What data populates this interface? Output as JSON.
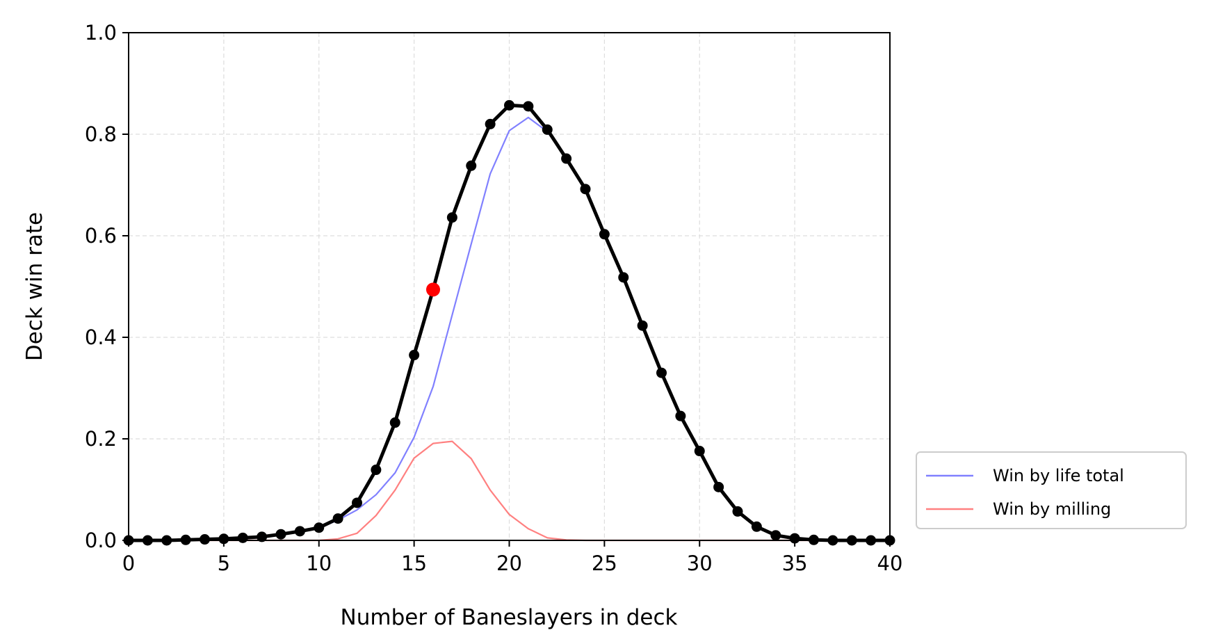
{
  "chart_data": {
    "type": "line",
    "title": "",
    "xlabel": "Number of Baneslayers in deck",
    "ylabel": "Deck win rate",
    "xlim": [
      0,
      40
    ],
    "ylim": [
      0,
      1
    ],
    "xticks": [
      0,
      5,
      10,
      15,
      20,
      25,
      30,
      35,
      40
    ],
    "xtick_labels": [
      "0",
      "5",
      "10",
      "15",
      "20",
      "25",
      "30",
      "35",
      "40"
    ],
    "yticks": [
      0,
      0.2,
      0.4,
      0.6,
      0.8,
      1.0
    ],
    "ytick_labels": [
      "0.0",
      "0.2",
      "0.4",
      "0.6",
      "0.8",
      "1.0"
    ],
    "grid": true,
    "legend_position": "outside-lower-right",
    "x": [
      0,
      1,
      2,
      3,
      4,
      5,
      6,
      7,
      8,
      9,
      10,
      11,
      12,
      13,
      14,
      15,
      16,
      17,
      18,
      19,
      20,
      21,
      22,
      23,
      24,
      25,
      26,
      27,
      28,
      29,
      30,
      31,
      32,
      33,
      34,
      35,
      36,
      37,
      38,
      39,
      40
    ],
    "series": [
      {
        "name": "",
        "role": "total",
        "color": "#000000",
        "markers": true,
        "values": [
          0.0,
          0.0,
          0.0,
          0.001,
          0.002,
          0.003,
          0.005,
          0.007,
          0.012,
          0.018,
          0.025,
          0.043,
          0.074,
          0.139,
          0.232,
          0.365,
          0.494,
          0.636,
          0.738,
          0.82,
          0.857,
          0.855,
          0.809,
          0.752,
          0.692,
          0.603,
          0.518,
          0.423,
          0.33,
          0.245,
          0.176,
          0.105,
          0.057,
          0.027,
          0.01,
          0.004,
          0.001,
          0.0,
          0.0,
          0.0,
          0.0
        ]
      },
      {
        "name": "Win by life total",
        "role": "life",
        "color": "#8080ff",
        "markers": false,
        "values": [
          0.0,
          0.0,
          0.0,
          0.001,
          0.002,
          0.003,
          0.005,
          0.007,
          0.011,
          0.018,
          0.024,
          0.04,
          0.06,
          0.09,
          0.133,
          0.203,
          0.303,
          0.444,
          0.584,
          0.722,
          0.807,
          0.833,
          0.805,
          0.752,
          0.692,
          0.603,
          0.518,
          0.423,
          0.33,
          0.245,
          0.176,
          0.105,
          0.057,
          0.027,
          0.01,
          0.004,
          0.001,
          0.0,
          0.0,
          0.0,
          0.0
        ]
      },
      {
        "name": "Win by milling",
        "role": "milling",
        "color": "#ff8080",
        "markers": false,
        "values": [
          0,
          0,
          0,
          0,
          0,
          0,
          0,
          0,
          0,
          0,
          0,
          0.003,
          0.014,
          0.049,
          0.099,
          0.162,
          0.191,
          0.195,
          0.161,
          0.099,
          0.051,
          0.023,
          0.005,
          0.001,
          0,
          0,
          0,
          0,
          0,
          0,
          0,
          0,
          0,
          0,
          0,
          0,
          0,
          0,
          0,
          0,
          0
        ]
      }
    ],
    "highlight_point": {
      "x": 16,
      "y": 0.494,
      "color": "#ff0000"
    }
  }
}
